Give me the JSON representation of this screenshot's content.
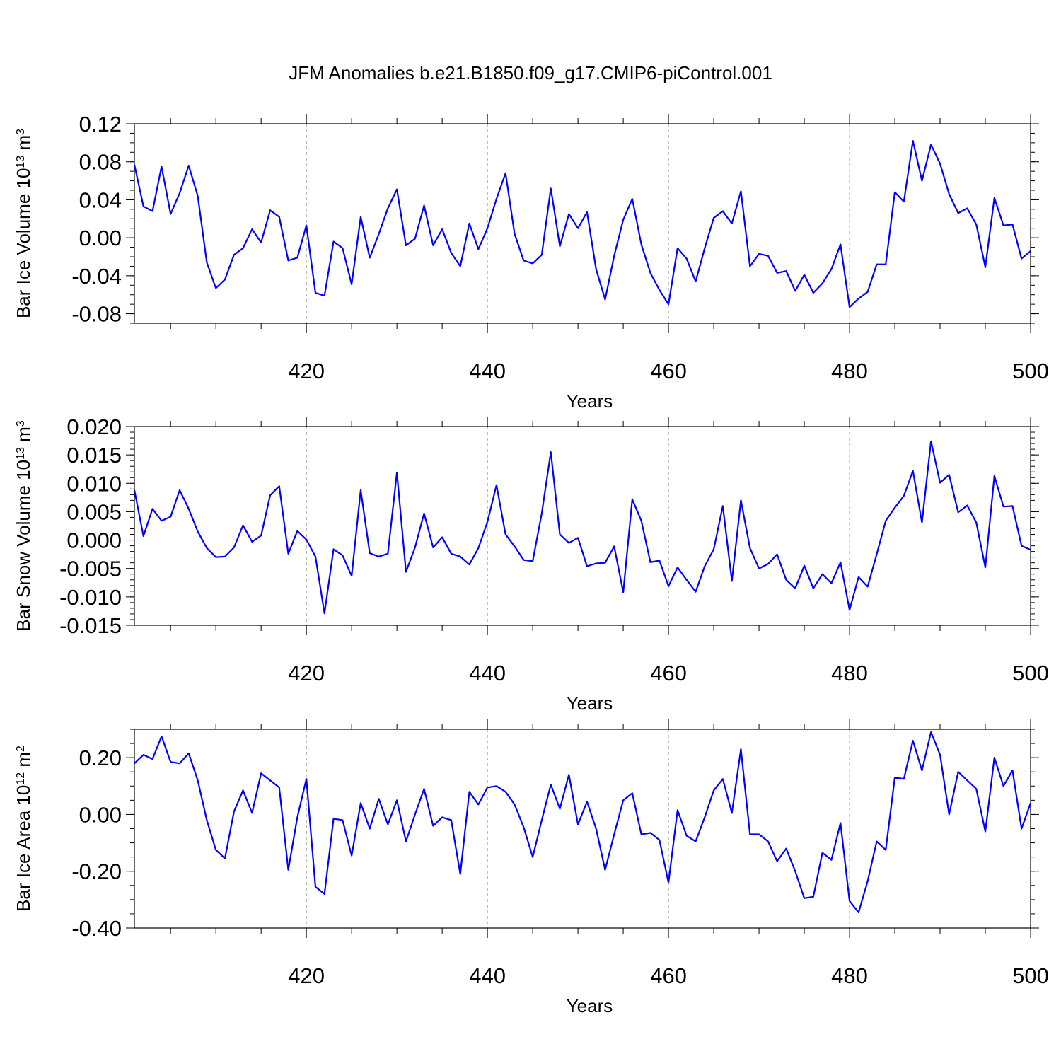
{
  "figure": {
    "title": "JFM Anomalies b.e21.B1850.f09_g17.CMIP6-piControl.001",
    "line_color": "#0000ff",
    "grid_color": "#999999"
  },
  "chart_data": [
    {
      "type": "line",
      "ylabel_main": "Bar Ice Volume 10",
      "ylabel_exp1": "13",
      "ylabel_unit": " m",
      "ylabel_exp2": "3",
      "xlabel": "Years",
      "xlim": [
        401,
        500
      ],
      "ylim": [
        -0.09,
        0.12
      ],
      "yticks": [
        -0.08,
        -0.04,
        0.0,
        0.04,
        0.08,
        0.12
      ],
      "ytick_labels": [
        "-0.08",
        "-0.04",
        "0.00",
        "0.04",
        "0.08",
        "0.12"
      ],
      "yminor": 0.01,
      "xticks": [
        420,
        440,
        460,
        480,
        500
      ],
      "xtick_labels": [
        "420",
        "440",
        "460",
        "480",
        "500"
      ],
      "grid_x": [
        420,
        440,
        460,
        480
      ],
      "x_start": 401,
      "values": [
        0.077,
        0.033,
        0.028,
        0.075,
        0.025,
        0.047,
        0.076,
        0.044,
        -0.026,
        -0.053,
        -0.044,
        -0.018,
        -0.011,
        0.009,
        -0.005,
        0.029,
        0.022,
        -0.024,
        -0.021,
        0.013,
        -0.058,
        -0.061,
        -0.004,
        -0.011,
        -0.049,
        0.022,
        -0.021,
        0.004,
        0.031,
        0.051,
        -0.008,
        -0.001,
        0.034,
        -0.008,
        0.009,
        -0.016,
        -0.03,
        0.015,
        -0.012,
        0.01,
        0.041,
        0.068,
        0.004,
        -0.024,
        -0.027,
        -0.018,
        0.052,
        -0.009,
        0.025,
        0.01,
        0.027,
        -0.033,
        -0.065,
        -0.019,
        0.019,
        0.041,
        -0.007,
        -0.037,
        -0.055,
        -0.07,
        -0.011,
        -0.022,
        -0.046,
        -0.011,
        0.021,
        0.028,
        0.015,
        0.049,
        -0.03,
        -0.017,
        -0.019,
        -0.037,
        -0.035,
        -0.056,
        -0.039,
        -0.058,
        -0.048,
        -0.033,
        -0.007,
        -0.073,
        -0.064,
        -0.057,
        -0.028,
        -0.028,
        0.048,
        0.038,
        0.102,
        0.06,
        0.098,
        0.078,
        0.046,
        0.026,
        0.031,
        0.014,
        -0.031,
        0.042,
        0.013,
        0.014,
        -0.022,
        -0.014
      ]
    },
    {
      "type": "line",
      "ylabel_main": "Bar Snow Volume 10",
      "ylabel_exp1": "13",
      "ylabel_unit": " m",
      "ylabel_exp2": "3",
      "xlabel": "Years",
      "xlim": [
        401,
        500
      ],
      "ylim": [
        -0.015,
        0.02
      ],
      "yticks": [
        -0.015,
        -0.01,
        -0.005,
        0.0,
        0.005,
        0.01,
        0.015,
        0.02
      ],
      "ytick_labels": [
        "-0.015",
        "-0.010",
        "-0.005",
        "0.000",
        "0.005",
        "0.010",
        "0.015",
        "0.020"
      ],
      "yminor": 0.001,
      "xticks": [
        420,
        440,
        460,
        480,
        500
      ],
      "xtick_labels": [
        "420",
        "440",
        "460",
        "480",
        "500"
      ],
      "grid_x": [
        420,
        440,
        460,
        480
      ],
      "x_start": 401,
      "values": [
        0.0088,
        0.0007,
        0.0055,
        0.0034,
        0.0041,
        0.0088,
        0.0055,
        0.0015,
        -0.0014,
        -0.003,
        -0.0029,
        -0.0013,
        0.0026,
        -0.0003,
        0.0008,
        0.0079,
        0.0095,
        -0.0024,
        0.0016,
        0.0001,
        -0.0029,
        -0.0129,
        -0.0016,
        -0.0027,
        -0.0063,
        0.0088,
        -0.0023,
        -0.0029,
        -0.0024,
        0.0119,
        -0.0056,
        -0.0013,
        0.0047,
        -0.0013,
        0.0005,
        -0.0024,
        -0.0029,
        -0.0043,
        -0.0014,
        0.0032,
        0.0097,
        0.001,
        -0.0011,
        -0.0035,
        -0.0037,
        0.0047,
        0.0155,
        0.001,
        -0.0005,
        0.0004,
        -0.0046,
        -0.0041,
        -0.004,
        -0.0011,
        -0.0092,
        0.0072,
        0.0034,
        -0.0039,
        -0.0036,
        -0.0081,
        -0.0048,
        -0.007,
        -0.0091,
        -0.0046,
        -0.0016,
        0.006,
        -0.0072,
        0.007,
        -0.0014,
        -0.005,
        -0.0042,
        -0.0025,
        -0.007,
        -0.0085,
        -0.0045,
        -0.0085,
        -0.006,
        -0.0076,
        -0.0039,
        -0.0123,
        -0.0065,
        -0.0082,
        -0.0025,
        0.0034,
        0.0057,
        0.0078,
        0.0122,
        0.0031,
        0.0174,
        0.0101,
        0.0115,
        0.0049,
        0.0061,
        0.0031,
        -0.0048,
        0.0113,
        0.0059,
        0.006,
        -0.001,
        -0.0017
      ]
    },
    {
      "type": "line",
      "ylabel_main": "Bar Ice Area 10",
      "ylabel_exp1": "12",
      "ylabel_unit": " m",
      "ylabel_exp2": "2",
      "xlabel": "Years",
      "xlim": [
        401,
        500
      ],
      "ylim": [
        -0.4,
        0.3
      ],
      "yticks": [
        -0.4,
        -0.2,
        0.0,
        0.2
      ],
      "ytick_labels": [
        "-0.40",
        "-0.20",
        "0.00",
        "0.20"
      ],
      "yminor": 0.05,
      "xticks": [
        420,
        440,
        460,
        480,
        500
      ],
      "xtick_labels": [
        "420",
        "440",
        "460",
        "480",
        "500"
      ],
      "grid_x": [
        420,
        440,
        460,
        480
      ],
      "x_start": 401,
      "values": [
        0.18,
        0.21,
        0.195,
        0.275,
        0.185,
        0.18,
        0.215,
        0.12,
        -0.02,
        -0.125,
        -0.155,
        0.01,
        0.085,
        0.005,
        0.145,
        0.12,
        0.095,
        -0.195,
        -0.01,
        0.125,
        -0.255,
        -0.28,
        -0.015,
        -0.02,
        -0.145,
        0.04,
        -0.05,
        0.055,
        -0.035,
        0.05,
        -0.095,
        0.0,
        0.09,
        -0.04,
        -0.01,
        -0.02,
        -0.21,
        0.08,
        0.035,
        0.095,
        0.1,
        0.08,
        0.035,
        -0.045,
        -0.15,
        -0.02,
        0.105,
        0.02,
        0.14,
        -0.035,
        0.045,
        -0.05,
        -0.195,
        -0.07,
        0.05,
        0.075,
        -0.07,
        -0.065,
        -0.09,
        -0.24,
        0.015,
        -0.075,
        -0.095,
        -0.01,
        0.085,
        0.125,
        0.005,
        0.23,
        -0.07,
        -0.07,
        -0.095,
        -0.165,
        -0.12,
        -0.2,
        -0.295,
        -0.29,
        -0.135,
        -0.16,
        -0.03,
        -0.305,
        -0.345,
        -0.235,
        -0.095,
        -0.125,
        0.13,
        0.125,
        0.26,
        0.155,
        0.29,
        0.21,
        0.0,
        0.15,
        0.12,
        0.09,
        -0.06,
        0.2,
        0.1,
        0.155,
        -0.05,
        0.04
      ]
    }
  ]
}
